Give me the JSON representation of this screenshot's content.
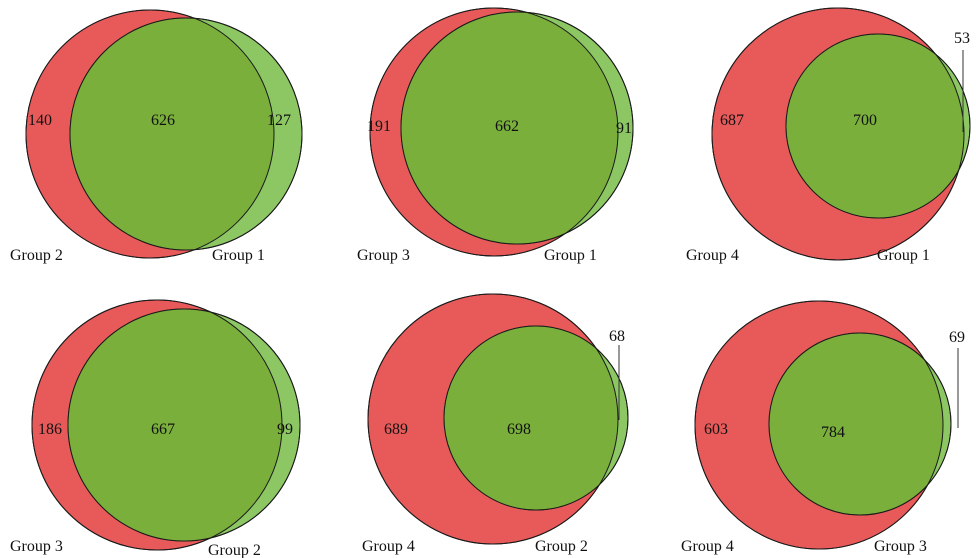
{
  "colors": {
    "left_set": "#e85a5a",
    "right_set": "#8cc764",
    "overlap": "#7aaf3c",
    "stroke": "#1a1a1a"
  },
  "venns": [
    {
      "left_name": "Group 2",
      "right_name": "Group 1",
      "left_only": "140",
      "both": "626",
      "right_only": "127"
    },
    {
      "left_name": "Group 3",
      "right_name": "Group 1",
      "left_only": "191",
      "both": "662",
      "right_only": "91"
    },
    {
      "left_name": "Group 4",
      "right_name": "Group 1",
      "left_only": "687",
      "both": "700",
      "right_only": "53"
    },
    {
      "left_name": "Group 3",
      "right_name": "Group 2",
      "left_only": "186",
      "both": "667",
      "right_only": "99"
    },
    {
      "left_name": "Group 4",
      "right_name": "Group 2",
      "left_only": "689",
      "both": "698",
      "right_only": "68"
    },
    {
      "left_name": "Group 4",
      "right_name": "Group 3",
      "left_only": "603",
      "both": "784",
      "right_only": "69"
    }
  ]
}
